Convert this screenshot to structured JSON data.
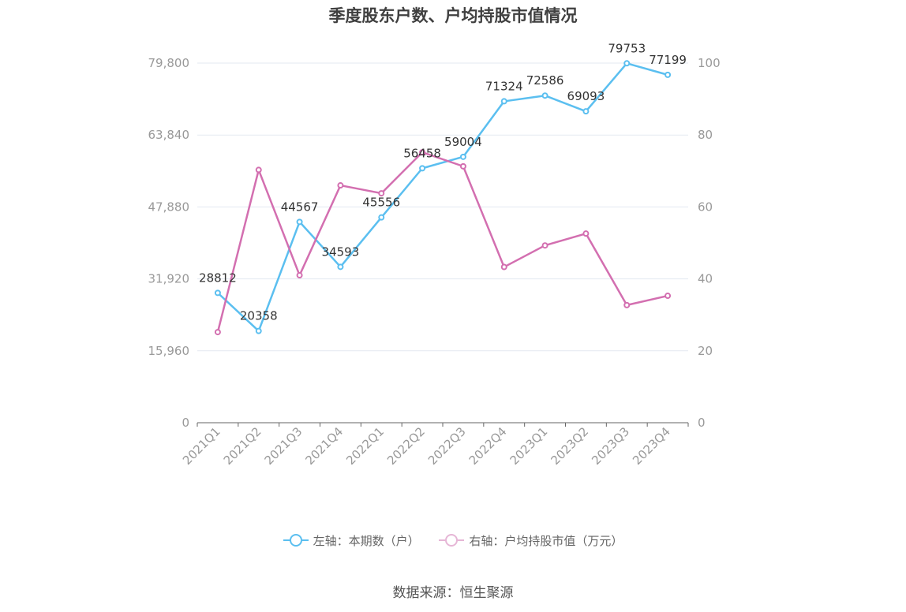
{
  "title": "季度股东户数、户均持股市值情况",
  "source": "数据来源：恒生聚源",
  "colors": {
    "left_series": "#5bbff0",
    "right_series": "#d36fb0",
    "axis_text": "#999999",
    "grid": "#e3e9f1"
  },
  "chart_data": {
    "type": "line",
    "title": "季度股东户数、户均持股市值情况",
    "categories": [
      "2021Q1",
      "2021Q2",
      "2021Q3",
      "2021Q4",
      "2022Q1",
      "2022Q2",
      "2022Q3",
      "2022Q4",
      "2023Q1",
      "2023Q2",
      "2023Q3",
      "2023Q4"
    ],
    "left_axis": {
      "ticks": [
        "0",
        "15,960",
        "31,920",
        "47,880",
        "63,840",
        "79,800"
      ],
      "ylim": [
        0,
        79800
      ]
    },
    "right_axis": {
      "ticks": [
        "0",
        "20",
        "40",
        "60",
        "80",
        "100"
      ],
      "ylim": [
        0,
        100
      ]
    },
    "series": [
      {
        "name": "左轴：本期数（户）",
        "axis": "left",
        "values": [
          28812,
          20358,
          44567,
          34593,
          45556,
          56458,
          59004,
          71324,
          72586,
          69093,
          79753,
          77199
        ],
        "labels": [
          "28812",
          "20358",
          "44567",
          "34593",
          "45556",
          "56458",
          "59004",
          "71324",
          "72586",
          "69093",
          "79753",
          "77199"
        ]
      },
      {
        "name": "右轴：户均持股市值（万元）",
        "axis": "right",
        "values": [
          25.2,
          70.3,
          41.0,
          66.0,
          63.8,
          75.2,
          71.3,
          43.3,
          49.3,
          52.6,
          32.7,
          35.3
        ]
      }
    ],
    "legend_position": "bottom",
    "grid": true
  }
}
